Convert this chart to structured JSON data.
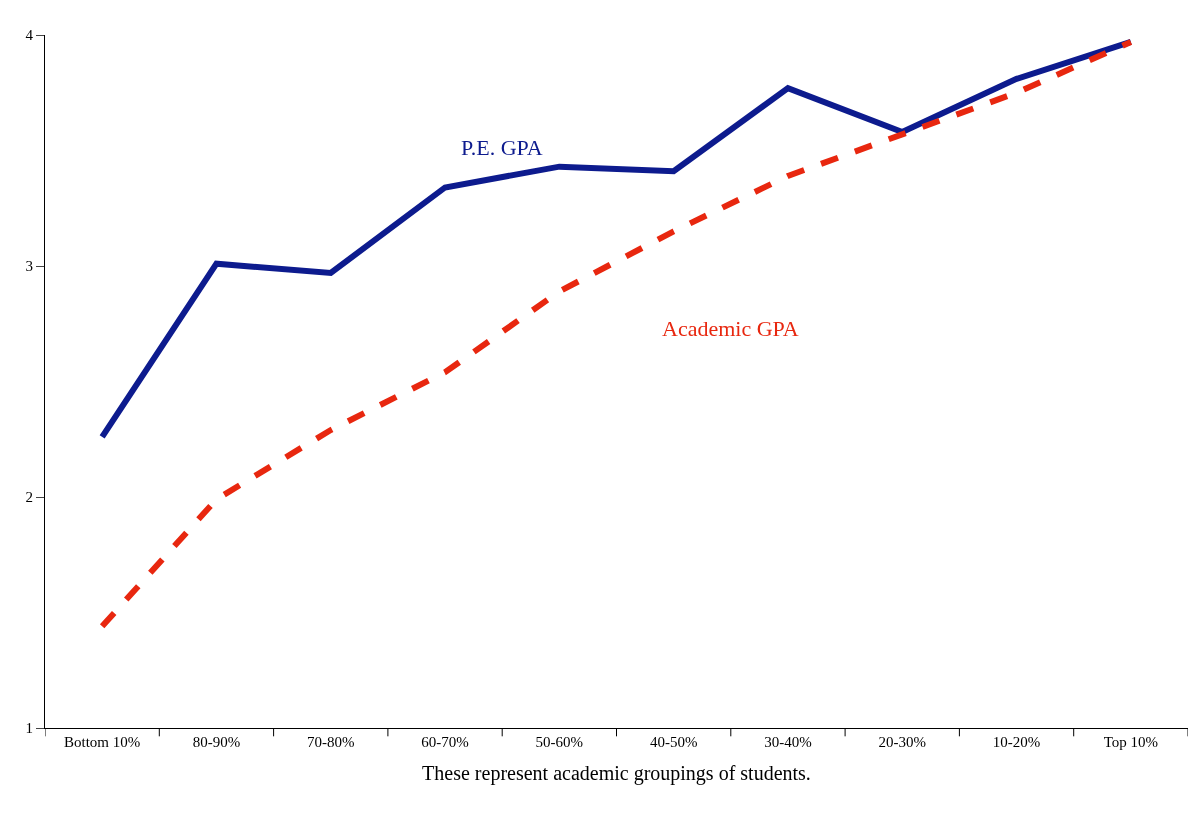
{
  "chart_data": {
    "type": "line",
    "xlabel": "These represent academic groupings of students.",
    "categories": [
      "Bottom 10%",
      "80-90%",
      "70-80%",
      "60-70%",
      "50-60%",
      "40-50%",
      "30-40%",
      "20-30%",
      "10-20%",
      "Top 10%"
    ],
    "series": [
      {
        "name": "P.E. GPA",
        "color": "#0d1b8e",
        "line_style": "solid",
        "values": [
          2.26,
          3.01,
          2.97,
          3.34,
          3.43,
          3.41,
          3.77,
          3.58,
          3.81,
          3.97
        ]
      },
      {
        "name": "Academic GPA",
        "color": "#e8270f",
        "line_style": "dashed",
        "values": [
          1.44,
          1.99,
          2.29,
          2.54,
          2.89,
          3.15,
          3.39,
          3.57,
          3.75,
          3.97
        ]
      }
    ],
    "ylim": [
      1,
      4
    ],
    "yticks": [
      1,
      2,
      3,
      4
    ],
    "legend": false,
    "marker": "none"
  }
}
